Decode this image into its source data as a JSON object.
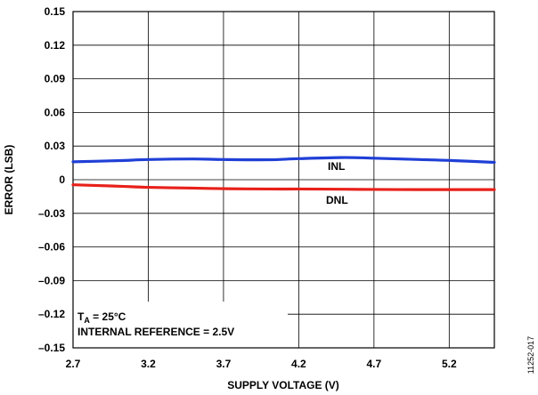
{
  "chart_data": {
    "type": "line",
    "xlabel": "SUPPLY VOLTAGE (V)",
    "ylabel": "ERROR (LSB)",
    "xlim": [
      2.7,
      5.5
    ],
    "ylim": [
      -0.15,
      0.15
    ],
    "x_ticks": [
      2.7,
      3.2,
      3.7,
      4.2,
      4.7,
      5.2
    ],
    "x_tick_labels": [
      "2.7",
      "3.2",
      "3.7",
      "4.2",
      "4.7",
      "5.2"
    ],
    "y_ticks": [
      0.15,
      0.12,
      0.09,
      0.06,
      0.03,
      0,
      -0.03,
      -0.06,
      -0.09,
      -0.12,
      -0.15
    ],
    "y_tick_labels": [
      "0.15",
      "0.12",
      "0.09",
      "0.06",
      "0.03",
      "0",
      "–0.03",
      "–0.06",
      "–0.09",
      "–0.12",
      "–0.15"
    ],
    "grid": true,
    "series": [
      {
        "name": "INL",
        "color": "#1f3fd6",
        "x": [
          2.7,
          3.0,
          3.2,
          3.5,
          3.7,
          4.0,
          4.2,
          4.5,
          4.7,
          5.0,
          5.2,
          5.5
        ],
        "y": [
          0.016,
          0.017,
          0.018,
          0.0185,
          0.018,
          0.0178,
          0.0188,
          0.0198,
          0.0192,
          0.018,
          0.0172,
          0.0155
        ]
      },
      {
        "name": "DNL",
        "color": "#e8201a",
        "x": [
          2.7,
          3.0,
          3.2,
          3.5,
          3.7,
          4.0,
          4.2,
          4.5,
          4.7,
          5.0,
          5.2,
          5.5
        ],
        "y": [
          -0.0045,
          -0.0058,
          -0.0068,
          -0.0075,
          -0.008,
          -0.0083,
          -0.0083,
          -0.0085,
          -0.0087,
          -0.0088,
          -0.0088,
          -0.0088
        ]
      }
    ],
    "annotation": {
      "line1_main": "T",
      "line1_sub": "A",
      "line1_rest": " = 25°C",
      "line2": "INTERNAL REFERENCE = 2.5V"
    }
  },
  "figure_code": "11252-017"
}
